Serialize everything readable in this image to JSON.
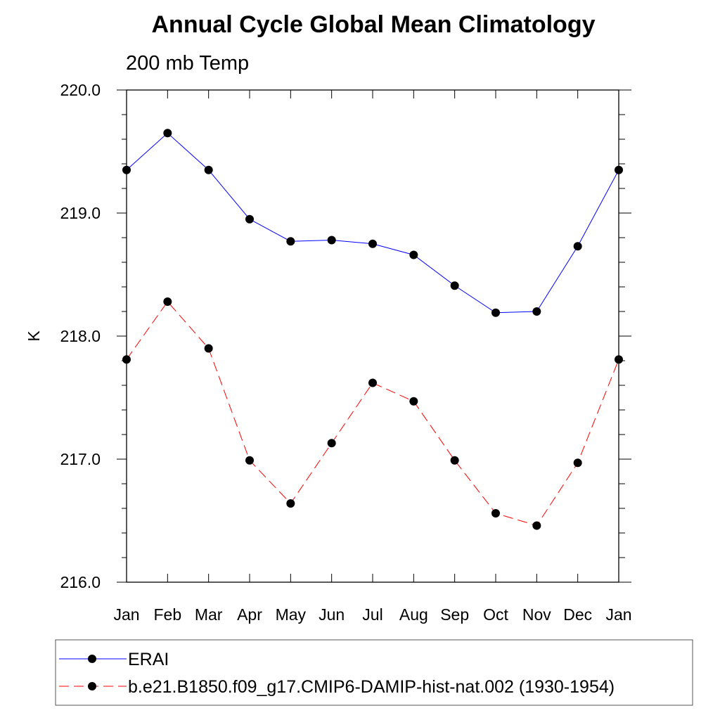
{
  "chart_data": {
    "type": "line",
    "title": "Annual Cycle Global Mean Climatology",
    "subtitle": "200 mb Temp",
    "xlabel": "",
    "ylabel": "K",
    "categories": [
      "Jan",
      "Feb",
      "Mar",
      "Apr",
      "May",
      "Jun",
      "Jul",
      "Aug",
      "Sep",
      "Oct",
      "Nov",
      "Dec",
      "Jan"
    ],
    "ylim": [
      216.0,
      220.0
    ],
    "yticks": [
      216.0,
      217.0,
      218.0,
      219.0,
      220.0
    ],
    "ytick_labels": [
      "216.0",
      "217.0",
      "218.0",
      "219.0",
      "220.0"
    ],
    "grid": false,
    "legend_position": "bottom",
    "series": [
      {
        "name": "ERAI",
        "color": "#0000ff",
        "line_style": "solid",
        "marker": "filled-circle",
        "values": [
          219.35,
          219.65,
          219.35,
          218.95,
          218.77,
          218.78,
          218.75,
          218.66,
          218.41,
          218.19,
          218.2,
          218.73,
          219.35
        ]
      },
      {
        "name": "b.e21.B1850.f09_g17.CMIP6-DAMIP-hist-nat.002 (1930-1954)",
        "color": "#ff0000",
        "line_style": "dashed",
        "marker": "filled-circle",
        "values": [
          217.81,
          218.28,
          217.9,
          216.99,
          216.64,
          217.13,
          217.62,
          217.47,
          216.99,
          216.56,
          216.46,
          216.97,
          217.81
        ]
      }
    ]
  }
}
